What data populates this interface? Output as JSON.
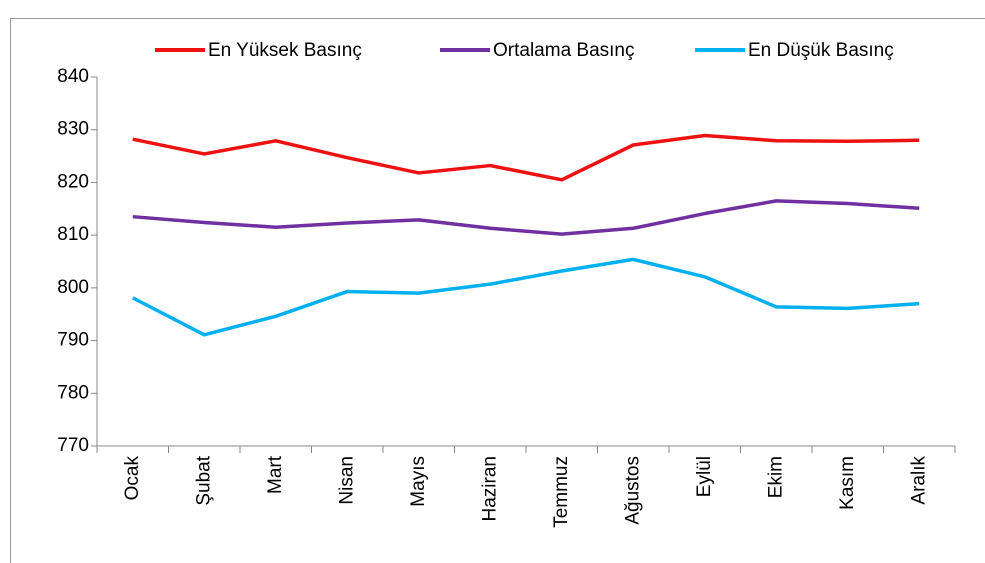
{
  "chart_data": {
    "type": "line",
    "categories": [
      "Ocak",
      "Şubat",
      "Mart",
      "Nisan",
      "Mayıs",
      "Haziran",
      "Temmuz",
      "Ağustos",
      "Eylül",
      "Ekim",
      "Kasım",
      "Aralık"
    ],
    "series": [
      {
        "name": "En Yüksek Basınç",
        "color": "#ee1111",
        "values": [
          828.2,
          825.4,
          827.9,
          824.7,
          821.8,
          823.2,
          820.5,
          827.1,
          828.9,
          827.9,
          827.8,
          828.0
        ]
      },
      {
        "name": "Ortalama Basınç",
        "color": "#7030a0",
        "values": [
          813.5,
          812.4,
          811.5,
          812.3,
          812.9,
          811.3,
          810.2,
          811.3,
          814.1,
          816.5,
          816.0,
          815.1
        ]
      },
      {
        "name": "En Düşük Basınç",
        "color": "#00b0f0",
        "values": [
          798.1,
          791.1,
          794.6,
          799.3,
          799.0,
          800.7,
          803.2,
          805.4,
          802.1,
          796.4,
          796.1,
          797.0
        ]
      }
    ],
    "ylim": [
      770,
      840
    ],
    "yticks": [
      770,
      780,
      790,
      800,
      810,
      820,
      830,
      840
    ],
    "grid": false,
    "legend": "top"
  }
}
